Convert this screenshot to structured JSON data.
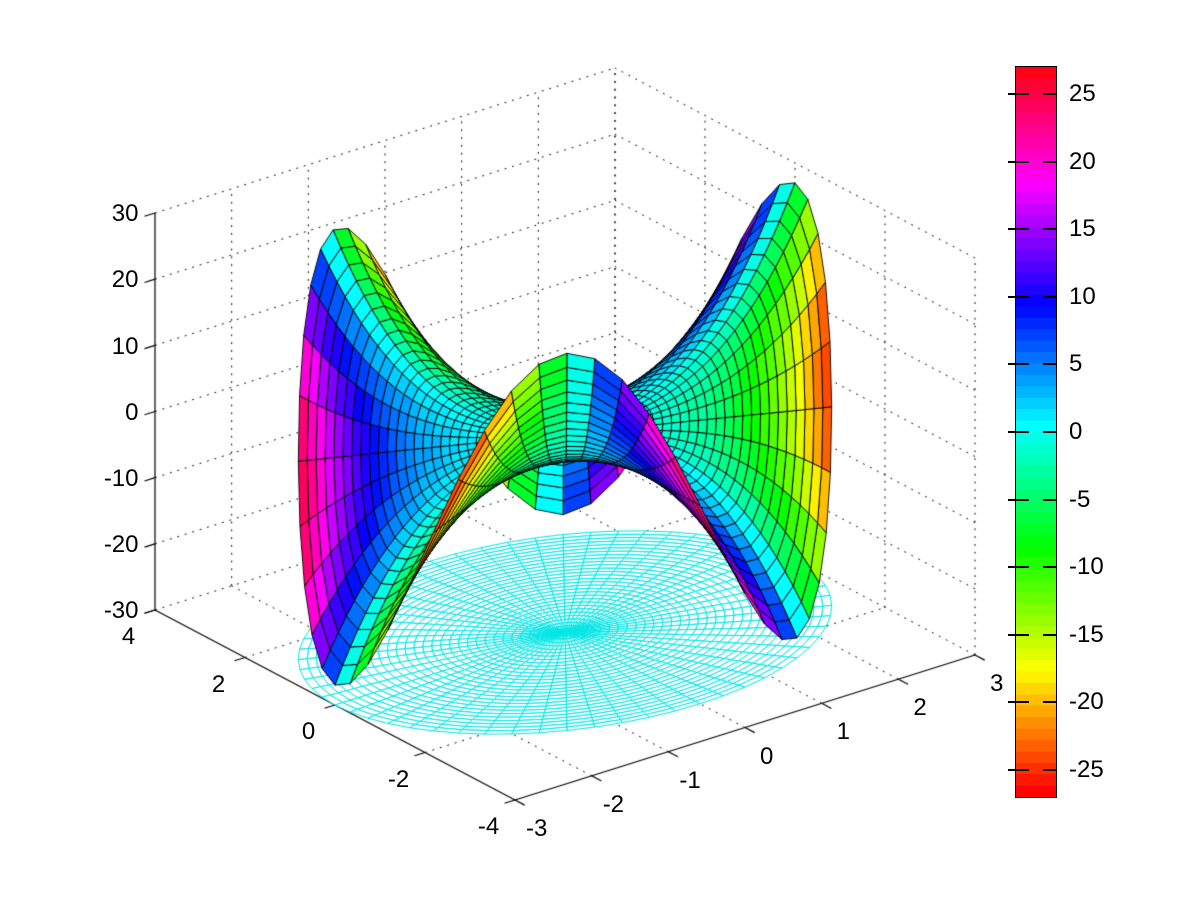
{
  "figure": {
    "background": "#ffffff",
    "title": ""
  },
  "chart_data": {
    "type": "surface",
    "title": "",
    "description": "3-D surface of the complex function w = z^3 plotted over the disk |z| <= 3; height is Re(w) = r^3*cos(3*theta), face color is Im(w) = r^3*sin(3*theta), shown with black mesh edges. A cyan polar wireframe of the domain disk is drawn flat on the floor plane z = -30.",
    "function": {
      "name": "w = z^3",
      "height": "Re(z^3) = r^3*cos(3*theta)",
      "color": "Im(z^3) = r^3*sin(3*theta)",
      "power": 3
    },
    "domain": {
      "shape": "disk",
      "radius": 3,
      "rings": 30,
      "sectors": 60
    },
    "surface_extrema": {
      "max_height": 27,
      "min_height": -27,
      "up_lobe_angles_deg": [
        0,
        120,
        240
      ],
      "down_lobe_angles_deg": [
        60,
        180,
        300
      ]
    },
    "colormap": {
      "name": "hsv",
      "levels": 64,
      "clim": [
        -27,
        27
      ]
    },
    "floor_mesh": {
      "z": -30,
      "edge_color": "#00e6e6",
      "face_color": "#ffffff"
    },
    "view": {
      "azimuth": -37.5,
      "elevation": 30,
      "projection": "orthographic"
    },
    "axes": {
      "x": {
        "range": [
          -3,
          3
        ],
        "ticks": [
          -3,
          -2,
          -1,
          0,
          1,
          2,
          3
        ]
      },
      "y": {
        "range": [
          -4,
          4
        ],
        "ticks": [
          -4,
          -2,
          0,
          2,
          4
        ]
      },
      "z": {
        "range": [
          -30,
          30
        ],
        "ticks": [
          -30,
          -20,
          -10,
          0,
          10,
          20,
          30
        ]
      },
      "grid": "dotted",
      "grid_color": "#000000",
      "axis_color": "#000000"
    },
    "colorbar": {
      "location": "right",
      "range": [
        -27,
        27
      ],
      "ticks": [
        -25,
        -20,
        -15,
        -10,
        -5,
        0,
        5,
        10,
        15,
        20,
        25
      ],
      "colormap": "hsv"
    },
    "surface_edge_color": "#000000"
  }
}
